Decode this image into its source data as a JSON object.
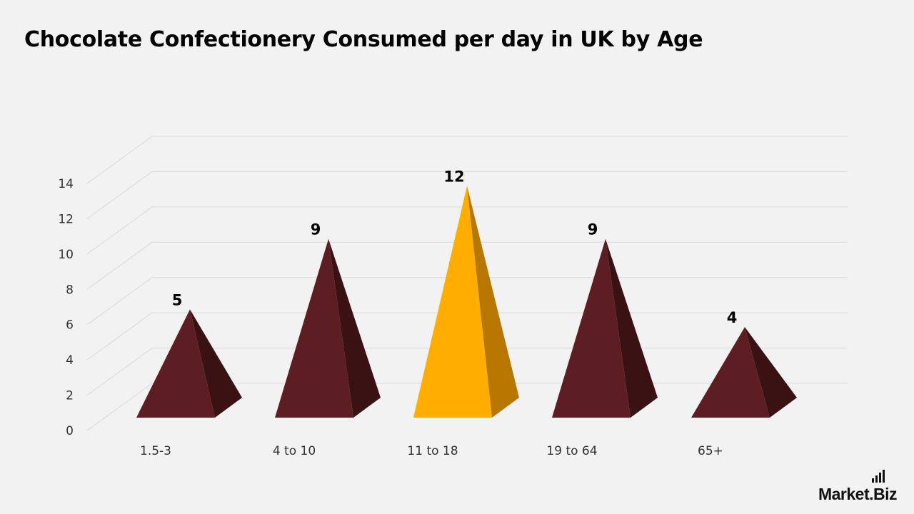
{
  "chart_data": {
    "type": "bar",
    "title": "Chocolate Confectionery Consumed per day in UK by Age",
    "categories": [
      "1.5-3",
      "4 to 10",
      "11 to 18",
      "19 to 64",
      "65+"
    ],
    "values": [
      5,
      9,
      12,
      9,
      4
    ],
    "ylim": [
      0,
      14
    ],
    "yticks": [
      "0",
      "2",
      "4",
      "6",
      "8",
      "10",
      "12",
      "14"
    ],
    "highlight_index": 2,
    "grid": true,
    "colors": {
      "bar": "#5c1e22",
      "bar_shade": "#3b1214",
      "highlight": "#ffae00",
      "highlight_shade": "#b87800",
      "grid": "#d9d9d9"
    }
  },
  "brand": {
    "text_a": "Market",
    "text_b": ".Biz"
  }
}
